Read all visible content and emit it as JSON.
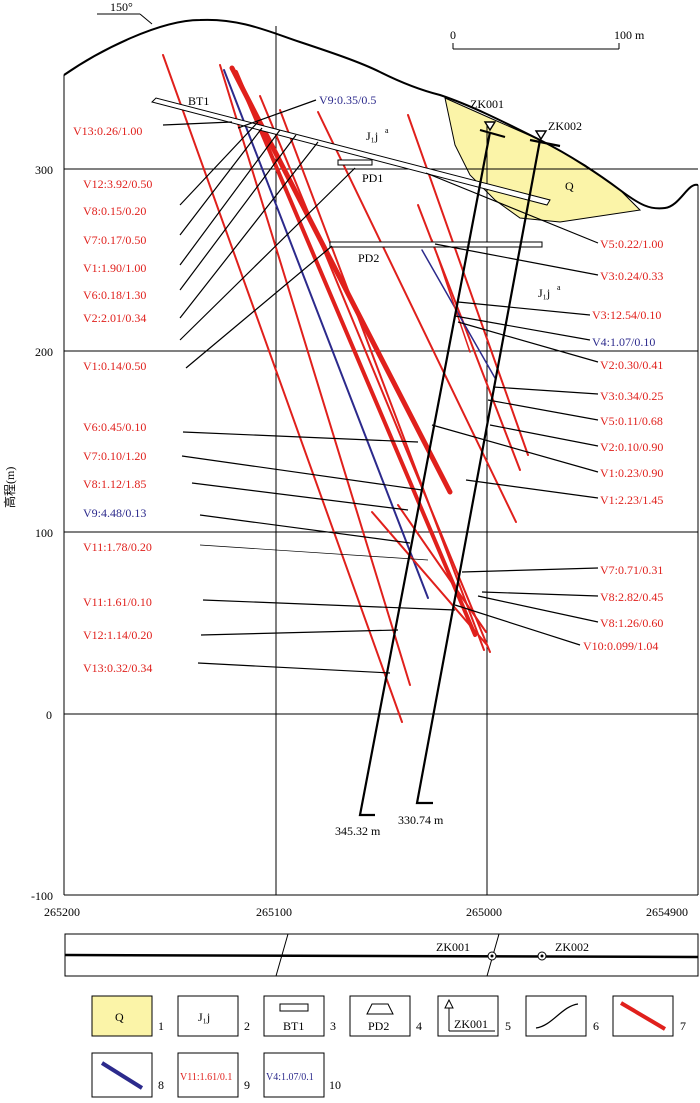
{
  "orientation": {
    "label": "150°"
  },
  "scale_bar": {
    "start": "0",
    "end": "100 m"
  },
  "y_axis": {
    "title": "高程(m)",
    "ticks": [
      "300",
      "200",
      "100",
      "0",
      "-100"
    ]
  },
  "x_axis": {
    "ticks": [
      "265200",
      "265100",
      "265000",
      "2654900"
    ]
  },
  "features": {
    "bt1": "BT1",
    "pd1": "PD1",
    "pd2": "PD2",
    "q": "Q",
    "zk001": "ZK001",
    "zk002": "ZK002",
    "j1_upper": "J₁j",
    "j1_lower": "J₁j",
    "superscript": "a",
    "depth_zk001": "345.32 m",
    "depth_zk002": "330.74 m"
  },
  "vein_labels_left": [
    {
      "text": "V13:0.26/1.00",
      "color": "#e0201c"
    },
    {
      "text": "V12:3.92/0.50",
      "color": "#e0201c"
    },
    {
      "text": "V8:0.15/0.20",
      "color": "#e0201c"
    },
    {
      "text": "V7:0.17/0.50",
      "color": "#e0201c"
    },
    {
      "text": "V1:1.90/1.00",
      "color": "#e0201c"
    },
    {
      "text": "V6:0.18/1.30",
      "color": "#e0201c"
    },
    {
      "text": "V2:2.01/0.34",
      "color": "#e0201c"
    },
    {
      "text": "V1:0.14/0.50",
      "color": "#e0201c"
    },
    {
      "text": "V6:0.45/0.10",
      "color": "#e0201c"
    },
    {
      "text": "V7:0.10/1.20",
      "color": "#e0201c"
    },
    {
      "text": "V8:1.12/1.85",
      "color": "#e0201c"
    },
    {
      "text": "V9:4.48/0.13",
      "color": "#2c2a8c"
    },
    {
      "text": "V11:1.78/0.20",
      "color": "#e0201c"
    },
    {
      "text": "V11:1.61/0.10",
      "color": "#e0201c"
    },
    {
      "text": "V12:1.14/0.20",
      "color": "#e0201c"
    },
    {
      "text": "V13:0.32/0.34",
      "color": "#e0201c"
    }
  ],
  "vein_label_top": {
    "text": "V9:0.35/0.5",
    "color": "#2c2a8c"
  },
  "vein_labels_right": [
    {
      "text": "V5:0.22/1.00",
      "color": "#e0201c"
    },
    {
      "text": "V3:0.24/0.33",
      "color": "#e0201c"
    },
    {
      "text": "V3:12.54/0.10",
      "color": "#e0201c"
    },
    {
      "text": "V4:1.07/0.10",
      "color": "#2c2a8c"
    },
    {
      "text": "V2:0.30/0.41",
      "color": "#e0201c"
    },
    {
      "text": "V3:0.34/0.25",
      "color": "#e0201c"
    },
    {
      "text": "V5:0.11/0.68",
      "color": "#e0201c"
    },
    {
      "text": "V2:0.10/0.90",
      "color": "#e0201c"
    },
    {
      "text": "V1:0.23/0.90",
      "color": "#e0201c"
    },
    {
      "text": "V1:2.23/1.45",
      "color": "#e0201c"
    },
    {
      "text": "V7:0.71/0.31",
      "color": "#e0201c"
    },
    {
      "text": "V8:2.82/0.45",
      "color": "#e0201c"
    },
    {
      "text": "V8:1.26/0.60",
      "color": "#e0201c"
    },
    {
      "text": "V10:0.099/1.04",
      "color": "#e0201c"
    }
  ],
  "plan_strip": {
    "zk001": "ZK001",
    "zk002": "ZK002"
  },
  "legend": [
    {
      "num": "1",
      "text": "Q"
    },
    {
      "num": "2",
      "text": "J₁j"
    },
    {
      "num": "3",
      "text": "BT1"
    },
    {
      "num": "4",
      "text": "PD2"
    },
    {
      "num": "5",
      "text": "ZK001"
    },
    {
      "num": "6",
      "text": ""
    },
    {
      "num": "7",
      "text": ""
    },
    {
      "num": "8",
      "text": ""
    },
    {
      "num": "9",
      "text": "V11:1.61/0.1"
    },
    {
      "num": "10",
      "text": "V4:1.07/0.1"
    }
  ],
  "colors": {
    "red_vein": "#e0201c",
    "blue_vein": "#2c2a8c",
    "quaternary": "#fbf4a8",
    "line": "#000000"
  }
}
